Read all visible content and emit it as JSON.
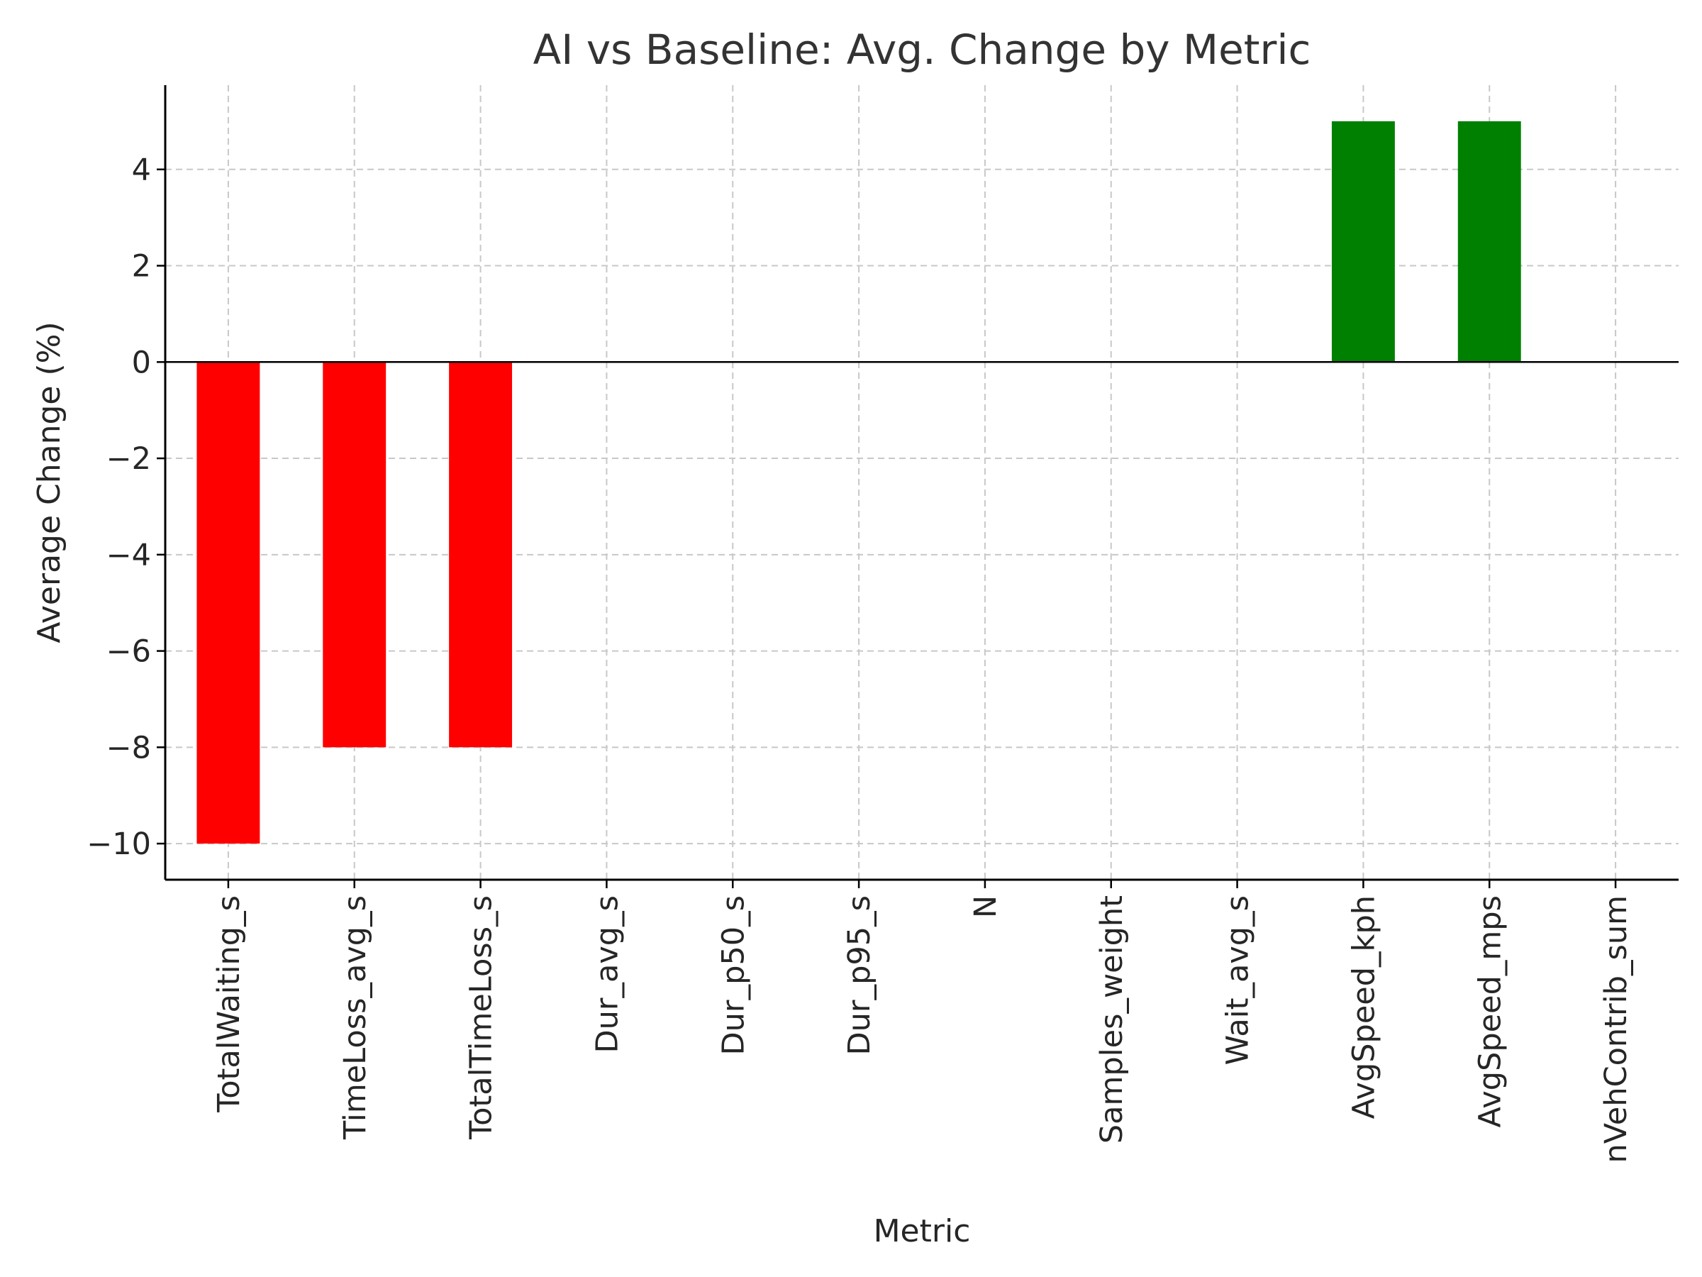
{
  "chart_data": {
    "type": "bar",
    "title": "AI vs Baseline: Avg. Change by Metric",
    "xlabel": "Metric",
    "ylabel": "Average Change (%)",
    "categories": [
      "TotalWaiting_s",
      "TimeLoss_avg_s",
      "TotalTimeLoss_s",
      "Dur_avg_s",
      "Dur_p50_s",
      "Dur_p95_s",
      "N",
      "Samples_weight",
      "Wait_avg_s",
      "AvgSpeed_kph",
      "AvgSpeed_mps",
      "nVehContrib_sum"
    ],
    "values": [
      -10,
      -8,
      -8,
      0,
      0,
      0,
      0,
      0,
      0,
      5,
      5,
      0
    ],
    "ylim": [
      -10.75,
      5.75
    ],
    "yticks": [
      -10,
      -8,
      -6,
      -4,
      -2,
      0,
      2,
      4
    ],
    "ytick_labels": [
      "−10",
      "−8",
      "−6",
      "−4",
      "−2",
      "0",
      "2",
      "4"
    ],
    "grid": true,
    "colors": {
      "negative": "#ff0000",
      "positive": "#008000",
      "grid": "#c8c8c8",
      "axis": "#000000"
    }
  }
}
